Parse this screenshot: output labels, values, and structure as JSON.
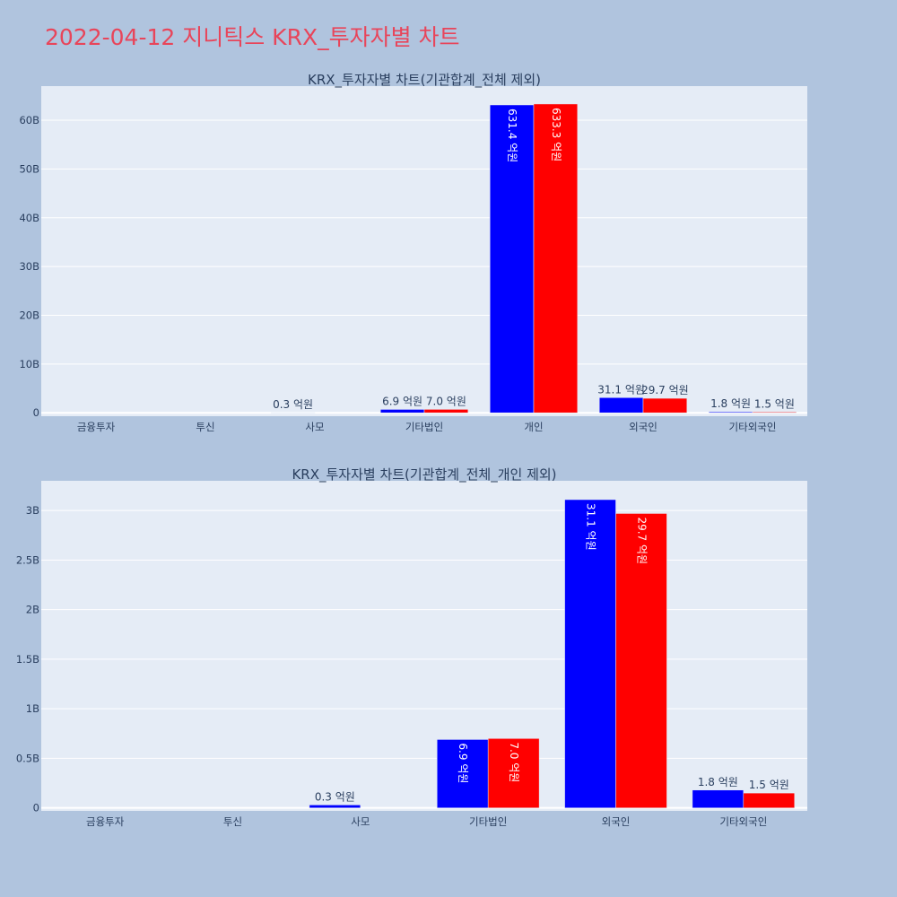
{
  "page_title": "2022-04-12 지니틱스 KRX_투자자별 차트",
  "colors": {
    "background": "#b0c4de",
    "plot_background": "#e5ecf6",
    "title": "#e8455a",
    "text": "#2a3f5f",
    "series_a": "#0000ff",
    "series_b": "#ff0000"
  },
  "chart_data": [
    {
      "type": "bar",
      "title": "KRX_투자자별 차트(기관합계_전체 제외)",
      "categories": [
        "금융투자",
        "투신",
        "사모",
        "기타법인",
        "개인",
        "외국인",
        "기타외국인"
      ],
      "series": [
        {
          "color": "#0000ff",
          "values": [
            0,
            0,
            30000000,
            690000000,
            63140000000,
            3110000000,
            180000000
          ],
          "labels": [
            "",
            "",
            "0.3 억원",
            "6.9 억원",
            "631.4 억원",
            "31.1 억원",
            "1.8 억원"
          ],
          "label_inside": [
            false,
            false,
            false,
            false,
            true,
            false,
            false
          ],
          "label_small": [
            false,
            false,
            false,
            false,
            false,
            true,
            false
          ]
        },
        {
          "color": "#ff0000",
          "values": [
            0,
            0,
            0,
            700000000,
            63330000000,
            2970000000,
            150000000
          ],
          "labels": [
            "",
            "",
            "",
            "7.0 억원",
            "633.3 억원",
            "29.7 억원",
            "1.5 억원"
          ],
          "label_inside": [
            false,
            false,
            false,
            false,
            true,
            false,
            false
          ],
          "label_small": [
            false,
            false,
            false,
            false,
            false,
            true,
            false
          ]
        }
      ],
      "ylim": [
        -700000000,
        67000000000
      ],
      "yticks": [
        {
          "value": 0,
          "label": "0"
        },
        {
          "value": 10000000000,
          "label": "10B"
        },
        {
          "value": 20000000000,
          "label": "20B"
        },
        {
          "value": 30000000000,
          "label": "30B"
        },
        {
          "value": 40000000000,
          "label": "40B"
        },
        {
          "value": 50000000000,
          "label": "50B"
        },
        {
          "value": 60000000000,
          "label": "60B"
        }
      ],
      "grid": true,
      "legend": "none"
    },
    {
      "type": "bar",
      "title": "KRX_투자자별 차트(기관합계_전체_개인 제외)",
      "categories": [
        "금융투자",
        "투신",
        "사모",
        "기타법인",
        "외국인",
        "기타외국인"
      ],
      "series": [
        {
          "color": "#0000ff",
          "values": [
            0,
            0,
            30000000,
            690000000,
            3110000000,
            180000000
          ],
          "labels": [
            "",
            "",
            "0.3 억원",
            "6.9 억원",
            "31.1 억원",
            "1.8 억원"
          ],
          "label_inside": [
            false,
            false,
            false,
            true,
            true,
            false
          ]
        },
        {
          "color": "#ff0000",
          "values": [
            0,
            0,
            0,
            700000000,
            2970000000,
            150000000
          ],
          "labels": [
            "",
            "",
            "",
            "7.0 억원",
            "29.7 억원",
            "1.5 억원"
          ],
          "label_inside": [
            false,
            false,
            false,
            true,
            true,
            false
          ]
        }
      ],
      "ylim": [
        -30000000,
        3300000000
      ],
      "yticks": [
        {
          "value": 0,
          "label": "0"
        },
        {
          "value": 500000000,
          "label": "0.5B"
        },
        {
          "value": 1000000000,
          "label": "1B"
        },
        {
          "value": 1500000000,
          "label": "1.5B"
        },
        {
          "value": 2000000000,
          "label": "2B"
        },
        {
          "value": 2500000000,
          "label": "2.5B"
        },
        {
          "value": 3000000000,
          "label": "3B"
        }
      ],
      "grid": true,
      "legend": "none"
    }
  ]
}
